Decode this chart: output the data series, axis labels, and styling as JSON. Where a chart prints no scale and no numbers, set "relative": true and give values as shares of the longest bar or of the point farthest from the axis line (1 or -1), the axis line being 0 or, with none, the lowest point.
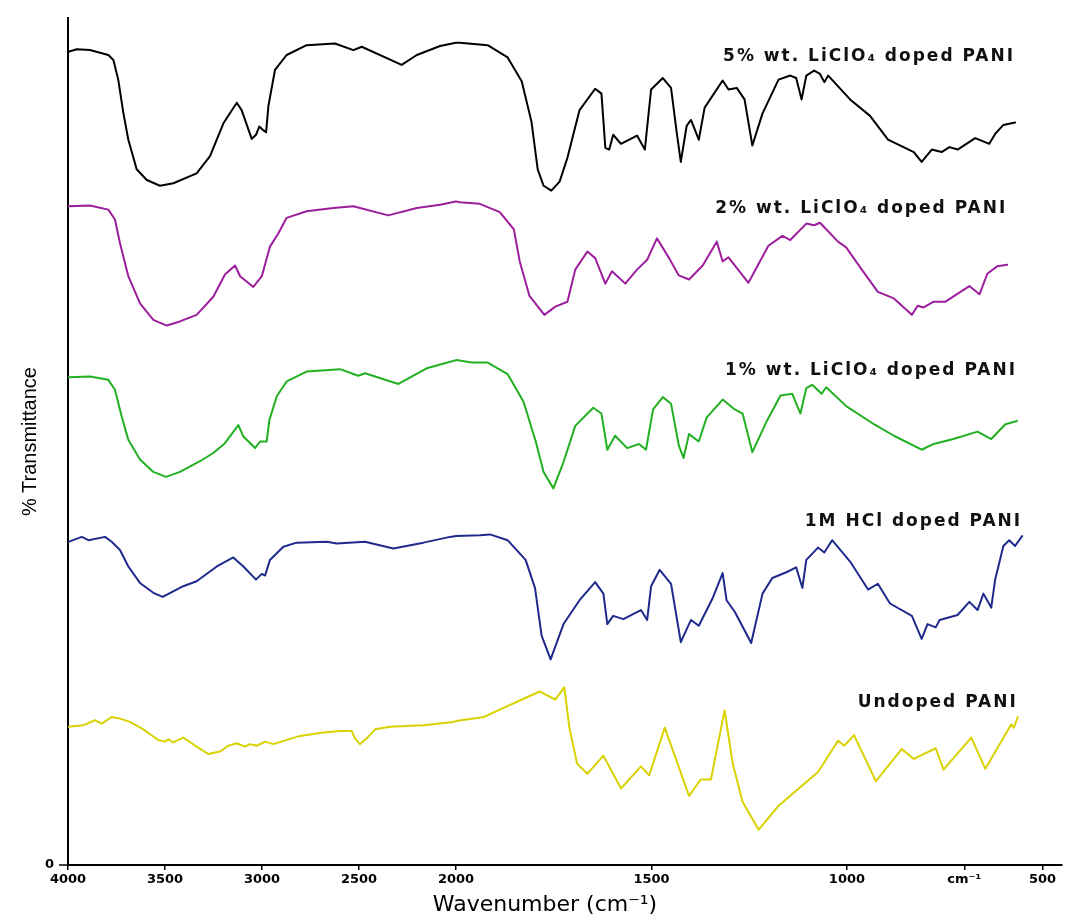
{
  "chart_data": [
    {
      "type": "line",
      "relative": true,
      "ylabel": "% Transmittance",
      "xlim": [
        4000,
        2000
      ],
      "xticks": [
        4000,
        3500,
        3000,
        2500
      ],
      "marker": "none",
      "line_style": "solid",
      "annotations": [
        "0"
      ],
      "series": [
        {
          "color": "#000000",
          "x": [
            3998,
            3955,
            3887,
            3792,
            3766,
            3741,
            3715,
            3689,
            3646,
            3594,
            3526,
            3457,
            3337,
            3268,
            3199,
            3130,
            3105,
            3053,
            3031,
            3014,
            2996,
            2979,
            2967,
            2933,
            2873,
            2770,
            2624,
            2529,
            2486,
            2280,
            2202,
            2082,
            2000
          ],
          "values": [
            0.989,
            0.992,
            0.991,
            0.985,
            0.979,
            0.955,
            0.915,
            0.882,
            0.846,
            0.833,
            0.826,
            0.829,
            0.841,
            0.862,
            0.902,
            0.927,
            0.918,
            0.883,
            0.888,
            0.898,
            0.894,
            0.891,
            0.923,
            0.967,
            0.985,
            0.997,
            0.999,
            0.991,
            0.995,
            0.973,
            0.985,
            0.996,
            1
          ]
        },
        {
          "color": "#9c1e9c",
          "x": [
            3998,
            3887,
            3792,
            3758,
            3732,
            3689,
            3629,
            3560,
            3491,
            3423,
            3337,
            3251,
            3191,
            3139,
            3113,
            3045,
            3001,
            2959,
            2916,
            2873,
            2770,
            2632,
            2529,
            2349,
            2202,
            2082,
            2000
          ],
          "values": [
            0.801,
            0.802,
            0.797,
            0.785,
            0.756,
            0.716,
            0.683,
            0.663,
            0.656,
            0.661,
            0.669,
            0.691,
            0.718,
            0.729,
            0.716,
            0.703,
            0.716,
            0.752,
            0.768,
            0.787,
            0.795,
            0.799,
            0.801,
            0.79,
            0.799,
            0.803,
            0.807
          ]
        },
        {
          "color": "#22b022",
          "x": [
            3998,
            3887,
            3792,
            3758,
            3723,
            3689,
            3629,
            3560,
            3495,
            3423,
            3320,
            3251,
            3191,
            3122,
            3096,
            3036,
            3010,
            2976,
            2962,
            2924,
            2873,
            2770,
            2598,
            2504,
            2469,
            2297,
            2151,
            2000
          ],
          "values": [
            0.593,
            0.594,
            0.59,
            0.578,
            0.545,
            0.517,
            0.493,
            0.478,
            0.472,
            0.478,
            0.491,
            0.501,
            0.513,
            0.535,
            0.521,
            0.507,
            0.515,
            0.515,
            0.541,
            0.57,
            0.588,
            0.6,
            0.603,
            0.595,
            0.598,
            0.585,
            0.604,
            0.614
          ]
        },
        {
          "color": "#1f2a8c",
          "x": [
            3998,
            3929,
            3895,
            3809,
            3775,
            3732,
            3689,
            3629,
            3560,
            3512,
            3406,
            3337,
            3233,
            3148,
            3096,
            3031,
            3001,
            2984,
            2959,
            2890,
            2821,
            2666,
            2615,
            2469,
            2323,
            2168,
            2031,
            2000
          ],
          "values": [
            0.393,
            0.399,
            0.395,
            0.399,
            0.393,
            0.383,
            0.363,
            0.343,
            0.331,
            0.326,
            0.339,
            0.345,
            0.363,
            0.374,
            0.363,
            0.347,
            0.354,
            0.352,
            0.371,
            0.387,
            0.392,
            0.393,
            0.391,
            0.393,
            0.385,
            0.392,
            0.399,
            0.4
          ]
        },
        {
          "color": "#d9d200",
          "x": [
            3998,
            3921,
            3861,
            3826,
            3775,
            3732,
            3680,
            3612,
            3535,
            3500,
            3483,
            3457,
            3406,
            3337,
            3277,
            3216,
            3174,
            3130,
            3088,
            3062,
            3027,
            2984,
            2942,
            2804,
            2684,
            2598,
            2538,
            2521,
            2495,
            2460,
            2417,
            2340,
            2168,
            2014,
            2000
          ],
          "values": [
            0.168,
            0.17,
            0.176,
            0.172,
            0.18,
            0.178,
            0.174,
            0.165,
            0.152,
            0.15,
            0.153,
            0.149,
            0.155,
            0.144,
            0.135,
            0.138,
            0.145,
            0.148,
            0.144,
            0.147,
            0.145,
            0.15,
            0.147,
            0.157,
            0.161,
            0.163,
            0.163,
            0.154,
            0.147,
            0.154,
            0.165,
            0.168,
            0.17,
            0.174,
            0.175
          ]
        }
      ]
    },
    {
      "type": "line",
      "relative": true,
      "xlabel": "Wavenumber (cm⁻¹)",
      "xlim": [
        2000,
        450
      ],
      "xticks": [
        2000,
        1500,
        1000,
        {
          "value": 700,
          "label": "cm⁻¹"
        },
        500
      ],
      "tick_labels": "x",
      "marker": "none",
      "line_style": "solid",
      "series": [
        {
          "name": "5% wt. LiClO₄ doped PANI",
          "color": "#000000",
          "x": [
            2000,
            1990,
            1919,
            1868,
            1832,
            1807,
            1791,
            1776,
            1756,
            1735,
            1715,
            1684,
            1644,
            1628,
            1618,
            1608,
            1598,
            1578,
            1537,
            1517,
            1501,
            1471,
            1450,
            1435,
            1425,
            1410,
            1399,
            1379,
            1364,
            1318,
            1303,
            1282,
            1262,
            1242,
            1216,
            1175,
            1145,
            1130,
            1116,
            1104,
            1084,
            1069,
            1058,
            1048,
            992,
            941,
            895,
            829,
            809,
            783,
            758,
            738,
            717,
            672,
            636,
            621,
            600,
            570
          ],
          "values": [
            1,
            1,
            0.997,
            0.982,
            0.953,
            0.904,
            0.846,
            0.826,
            0.82,
            0.831,
            0.86,
            0.918,
            0.944,
            0.938,
            0.872,
            0.87,
            0.888,
            0.877,
            0.887,
            0.87,
            0.943,
            0.957,
            0.945,
            0.889,
            0.855,
            0.899,
            0.906,
            0.882,
            0.921,
            0.954,
            0.943,
            0.945,
            0.931,
            0.875,
            0.914,
            0.955,
            0.96,
            0.957,
            0.931,
            0.96,
            0.966,
            0.962,
            0.952,
            0.96,
            0.931,
            0.911,
            0.882,
            0.867,
            0.855,
            0.87,
            0.867,
            0.873,
            0.87,
            0.884,
            0.877,
            0.889,
            0.9,
            0.903
          ]
        },
        {
          "name": "2% wt. LiClO₄ doped PANI",
          "color": "#9c1e9c",
          "x": [
            2000,
            1990,
            1939,
            1888,
            1852,
            1837,
            1812,
            1774,
            1746,
            1715,
            1695,
            1664,
            1644,
            1618,
            1601,
            1567,
            1537,
            1511,
            1486,
            1455,
            1430,
            1404,
            1369,
            1333,
            1318,
            1303,
            1252,
            1201,
            1165,
            1145,
            1104,
            1084,
            1069,
            1023,
            1002,
            962,
            921,
            880,
            834,
            819,
            804,
            778,
            748,
            687,
            661,
            641,
            616,
            590
          ],
          "values": [
            0.807,
            0.806,
            0.804,
            0.794,
            0.773,
            0.734,
            0.692,
            0.669,
            0.679,
            0.685,
            0.724,
            0.746,
            0.738,
            0.707,
            0.722,
            0.707,
            0.724,
            0.736,
            0.762,
            0.738,
            0.717,
            0.712,
            0.729,
            0.758,
            0.734,
            0.739,
            0.708,
            0.753,
            0.765,
            0.76,
            0.78,
            0.778,
            0.781,
            0.758,
            0.751,
            0.724,
            0.697,
            0.689,
            0.669,
            0.68,
            0.678,
            0.685,
            0.685,
            0.704,
            0.694,
            0.719,
            0.728,
            0.73
          ]
        },
        {
          "name": "1% wt. LiClO₄ doped PANI",
          "color": "#22b022",
          "x": [
            2000,
            1959,
            1919,
            1868,
            1827,
            1796,
            1776,
            1751,
            1725,
            1695,
            1649,
            1628,
            1613,
            1593,
            1562,
            1532,
            1514,
            1496,
            1471,
            1450,
            1430,
            1418,
            1404,
            1379,
            1359,
            1318,
            1287,
            1267,
            1242,
            1206,
            1170,
            1140,
            1119,
            1104,
            1089,
            1065,
            1053,
            1002,
            931,
            880,
            809,
            778,
            728,
            666,
            631,
            595,
            565
          ],
          "values": [
            0.614,
            0.611,
            0.611,
            0.597,
            0.563,
            0.515,
            0.478,
            0.458,
            0.49,
            0.534,
            0.556,
            0.549,
            0.505,
            0.522,
            0.507,
            0.512,
            0.505,
            0.554,
            0.569,
            0.561,
            0.51,
            0.495,
            0.524,
            0.515,
            0.544,
            0.566,
            0.554,
            0.549,
            0.502,
            0.539,
            0.571,
            0.573,
            0.549,
            0.58,
            0.584,
            0.573,
            0.581,
            0.558,
            0.536,
            0.522,
            0.505,
            0.512,
            0.518,
            0.527,
            0.518,
            0.536,
            0.54
          ]
        },
        {
          "name": "1M HCl doped PANI",
          "color": "#1f2a8c",
          "x": [
            2000,
            1939,
            1913,
            1868,
            1822,
            1798,
            1781,
            1758,
            1725,
            1684,
            1644,
            1623,
            1613,
            1598,
            1572,
            1527,
            1511,
            1501,
            1479,
            1450,
            1425,
            1399,
            1379,
            1343,
            1318,
            1308,
            1287,
            1245,
            1216,
            1191,
            1155,
            1130,
            1114,
            1104,
            1074,
            1058,
            1038,
            992,
            946,
            921,
            890,
            834,
            809,
            794,
            773,
            763,
            717,
            687,
            666,
            651,
            631,
            621,
            600,
            585,
            570,
            552
          ],
          "values": [
            0.4,
            0.401,
            0.402,
            0.395,
            0.371,
            0.337,
            0.279,
            0.25,
            0.293,
            0.322,
            0.344,
            0.33,
            0.293,
            0.303,
            0.299,
            0.31,
            0.298,
            0.339,
            0.359,
            0.342,
            0.271,
            0.298,
            0.291,
            0.325,
            0.355,
            0.322,
            0.308,
            0.27,
            0.33,
            0.349,
            0.356,
            0.362,
            0.337,
            0.371,
            0.386,
            0.38,
            0.395,
            0.369,
            0.335,
            0.342,
            0.318,
            0.303,
            0.275,
            0.293,
            0.289,
            0.298,
            0.304,
            0.32,
            0.31,
            0.33,
            0.313,
            0.347,
            0.388,
            0.395,
            0.388,
            0.4
          ]
        },
        {
          "name": "Undoped PANI",
          "color": "#d9d200",
          "x": [
            2000,
            1929,
            1888,
            1786,
            1746,
            1723,
            1710,
            1690,
            1664,
            1623,
            1578,
            1527,
            1506,
            1466,
            1404,
            1374,
            1348,
            1313,
            1292,
            1267,
            1226,
            1175,
            1074,
            1023,
            1007,
            982,
            926,
            860,
            829,
            773,
            753,
            682,
            646,
            580,
            573,
            563
          ],
          "values": [
            0.175,
            0.18,
            0.189,
            0.211,
            0.201,
            0.216,
            0.167,
            0.123,
            0.111,
            0.133,
            0.093,
            0.12,
            0.109,
            0.167,
            0.084,
            0.104,
            0.104,
            0.188,
            0.123,
            0.077,
            0.043,
            0.072,
            0.113,
            0.151,
            0.145,
            0.158,
            0.102,
            0.141,
            0.129,
            0.142,
            0.116,
            0.155,
            0.117,
            0.171,
            0.167,
            0.18
          ]
        }
      ]
    }
  ]
}
